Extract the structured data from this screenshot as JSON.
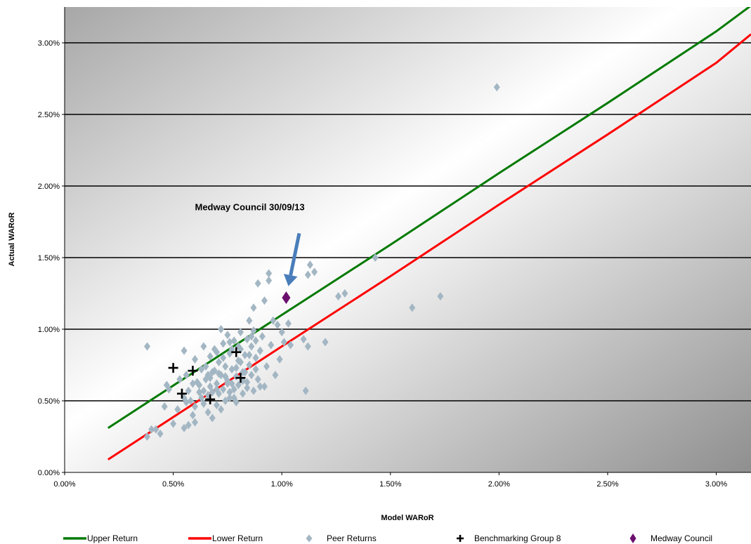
{
  "chart_data": {
    "type": "scatter",
    "xlabel": "Model WARoR",
    "ylabel": "Actual WARoR",
    "xlim": [
      0.0,
      3.16
    ],
    "ylim": [
      0.0,
      3.25
    ],
    "x_ticks": [
      0,
      0.5,
      1.0,
      1.5,
      2.0,
      2.5,
      3.0
    ],
    "x_tick_labels": [
      "0.00%",
      "0.50%",
      "1.00%",
      "1.50%",
      "2.00%",
      "2.50%",
      "3.00%"
    ],
    "y_ticks": [
      0,
      0.5,
      1.0,
      1.5,
      2.0,
      2.5,
      3.0
    ],
    "y_tick_labels": [
      "0.00%",
      "0.50%",
      "1.00%",
      "1.50%",
      "2.00%",
      "2.50%",
      "3.00%"
    ],
    "grid": "horizontal",
    "legend_position": "bottom",
    "annotation": {
      "text": "Medway Council 30/09/13",
      "arrow_from": [
        1.08,
        1.67
      ],
      "arrow_to": [
        1.03,
        1.3
      ],
      "text_at": [
        0.6,
        1.83
      ]
    },
    "series": [
      {
        "name": "Upper Return",
        "kind": "line",
        "color": "#007a00",
        "x": [
          0.2,
          1.0,
          1.5,
          2.0,
          2.5,
          3.0,
          3.16
        ],
        "y": [
          0.31,
          1.1,
          1.59,
          2.09,
          2.58,
          3.08,
          3.26
        ]
      },
      {
        "name": "Lower Return",
        "kind": "line",
        "color": "#ff0000",
        "x": [
          0.2,
          1.0,
          1.5,
          2.0,
          2.5,
          3.0,
          3.16
        ],
        "y": [
          0.09,
          0.88,
          1.37,
          1.87,
          2.36,
          2.86,
          3.06
        ]
      },
      {
        "name": "Peer Returns",
        "kind": "scatter",
        "marker": "diamond",
        "color": "#a3b6c3",
        "points": [
          [
            0.38,
            0.88
          ],
          [
            0.4,
            0.3
          ],
          [
            0.38,
            0.25
          ],
          [
            0.44,
            0.27
          ],
          [
            0.46,
            0.46
          ],
          [
            0.48,
            0.58
          ],
          [
            0.5,
            0.34
          ],
          [
            0.52,
            0.44
          ],
          [
            0.55,
            0.31
          ],
          [
            0.55,
            0.85
          ],
          [
            0.56,
            0.68
          ],
          [
            0.57,
            0.57
          ],
          [
            0.58,
            0.5
          ],
          [
            0.59,
            0.4
          ],
          [
            0.6,
            0.46
          ],
          [
            0.6,
            0.79
          ],
          [
            0.61,
            0.63
          ],
          [
            0.62,
            0.56
          ],
          [
            0.63,
            0.72
          ],
          [
            0.64,
            0.88
          ],
          [
            0.64,
            0.48
          ],
          [
            0.65,
            0.65
          ],
          [
            0.66,
            0.42
          ],
          [
            0.66,
            0.54
          ],
          [
            0.67,
            0.6
          ],
          [
            0.67,
            0.81
          ],
          [
            0.68,
            0.7
          ],
          [
            0.68,
            0.38
          ],
          [
            0.69,
            0.86
          ],
          [
            0.7,
            0.47
          ],
          [
            0.7,
            0.62
          ],
          [
            0.71,
            0.77
          ],
          [
            0.71,
            0.55
          ],
          [
            0.72,
            1.0
          ],
          [
            0.72,
            0.68
          ],
          [
            0.73,
            0.58
          ],
          [
            0.73,
            0.9
          ],
          [
            0.74,
            0.5
          ],
          [
            0.74,
            0.74
          ],
          [
            0.75,
            0.64
          ],
          [
            0.75,
            0.96
          ],
          [
            0.76,
            0.83
          ],
          [
            0.76,
            0.56
          ],
          [
            0.77,
            0.72
          ],
          [
            0.77,
            0.62
          ],
          [
            0.78,
            0.92
          ],
          [
            0.78,
            0.52
          ],
          [
            0.79,
            0.67
          ],
          [
            0.79,
            0.49
          ],
          [
            0.8,
            0.78
          ],
          [
            0.8,
            0.61
          ],
          [
            0.81,
            0.98
          ],
          [
            0.81,
            0.86
          ],
          [
            0.82,
            0.7
          ],
          [
            0.82,
            0.55
          ],
          [
            0.83,
            0.82
          ],
          [
            0.84,
            0.63
          ],
          [
            0.84,
            0.93
          ],
          [
            0.85,
            1.06
          ],
          [
            0.85,
            0.75
          ],
          [
            0.86,
            0.68
          ],
          [
            0.86,
            0.88
          ],
          [
            0.87,
            0.57
          ],
          [
            0.87,
            1.15
          ],
          [
            0.88,
            0.8
          ],
          [
            0.88,
            0.92
          ],
          [
            0.89,
            0.65
          ],
          [
            0.89,
            1.32
          ],
          [
            0.9,
            0.85
          ],
          [
            0.9,
            0.6
          ],
          [
            0.91,
            0.95
          ],
          [
            0.92,
            1.2
          ],
          [
            0.93,
            0.74
          ],
          [
            0.94,
            1.34
          ],
          [
            0.94,
            1.39
          ],
          [
            0.95,
            0.89
          ],
          [
            0.96,
            1.06
          ],
          [
            0.97,
            0.68
          ],
          [
            0.98,
            1.03
          ],
          [
            0.99,
            0.79
          ],
          [
            1.0,
            0.98
          ],
          [
            1.01,
            0.91
          ],
          [
            1.03,
            1.04
          ],
          [
            1.04,
            0.89
          ],
          [
            1.1,
            0.93
          ],
          [
            1.12,
            0.88
          ],
          [
            1.12,
            1.38
          ],
          [
            1.13,
            1.45
          ],
          [
            1.15,
            1.4
          ],
          [
            1.2,
            0.91
          ],
          [
            1.26,
            1.23
          ],
          [
            1.29,
            1.25
          ],
          [
            1.11,
            0.57
          ],
          [
            1.43,
            1.5
          ],
          [
            1.6,
            1.15
          ],
          [
            1.73,
            1.23
          ],
          [
            1.99,
            2.69
          ],
          [
            0.42,
            0.3
          ],
          [
            0.47,
            0.61
          ],
          [
            0.53,
            0.65
          ],
          [
            0.56,
            0.49
          ],
          [
            0.6,
            0.35
          ],
          [
            0.63,
            0.52
          ],
          [
            0.65,
            0.74
          ],
          [
            0.68,
            0.56
          ],
          [
            0.7,
            0.84
          ],
          [
            0.72,
            0.44
          ],
          [
            0.74,
            0.67
          ],
          [
            0.76,
            0.52
          ],
          [
            0.78,
            0.58
          ],
          [
            0.8,
            0.88
          ],
          [
            0.83,
            0.7
          ],
          [
            0.86,
            0.95
          ],
          [
            0.88,
            0.72
          ],
          [
            0.9,
            0.85
          ],
          [
            0.92,
            0.6
          ],
          [
            0.57,
            0.33
          ],
          [
            0.62,
            0.61
          ],
          [
            0.66,
            0.68
          ],
          [
            0.7,
            0.58
          ],
          [
            0.73,
            0.8
          ],
          [
            0.77,
            0.86
          ],
          [
            0.81,
            0.77
          ],
          [
            0.84,
            0.59
          ],
          [
            0.87,
            0.99
          ],
          [
            0.64,
            0.57
          ],
          [
            0.69,
            0.71
          ],
          [
            0.75,
            0.62
          ],
          [
            0.79,
            0.73
          ],
          [
            0.82,
            0.64
          ],
          [
            0.85,
            0.82
          ],
          [
            0.59,
            0.62
          ],
          [
            0.67,
            0.66
          ],
          [
            0.71,
            0.69
          ],
          [
            0.55,
            0.52
          ],
          [
            0.76,
            0.91
          ]
        ]
      },
      {
        "name": "Benchmarking Group 8",
        "kind": "scatter",
        "marker": "cross",
        "color": "#000000",
        "points": [
          [
            0.5,
            0.73
          ],
          [
            0.54,
            0.55
          ],
          [
            0.59,
            0.71
          ],
          [
            0.67,
            0.51
          ],
          [
            0.79,
            0.84
          ],
          [
            0.81,
            0.66
          ]
        ]
      },
      {
        "name": "Medway Council",
        "kind": "scatter",
        "marker": "diamond",
        "color": "#6b0e6e",
        "points": [
          [
            1.02,
            1.22
          ]
        ]
      }
    ]
  }
}
